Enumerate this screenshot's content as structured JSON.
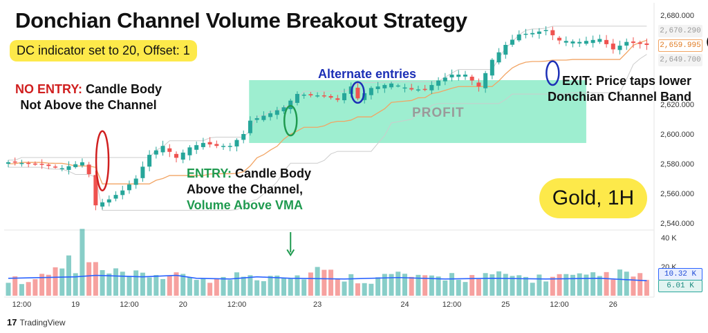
{
  "title": "Donchian Channel Volume Breakout Strategy",
  "badge": "DC indicator set to 20, Offset: 1",
  "annotations": {
    "no_entry_a": "NO ENTRY:",
    "no_entry_b": " Candle Body",
    "no_entry_c": "Not Above the Channel",
    "entry_a": "ENTRY:",
    "entry_b": " Candle Body",
    "entry_c": "Above the Channel,",
    "entry_d": "Volume Above VMA",
    "alternate": "Alternate entries",
    "profit": "PROFIT",
    "exit_a": "EXIT: Price taps lower",
    "exit_b": "Donchian Channel Band"
  },
  "asset_label": "Gold, 1H",
  "watermark": "TradingView",
  "watermark_logo": "17",
  "colors": {
    "up_candle": "#26a69a",
    "down_candle": "#ef5350",
    "basis_line": "#f2a463",
    "channel_band": "#cccccc",
    "profit_zone": "#7ee8c0",
    "vma_line": "#2962ff",
    "badge_bg": "#fde94a",
    "entry_marker": "#1f9a4f",
    "alt_marker": "#1c2fb6",
    "no_entry_marker": "#d01f1f",
    "exit_marker": "#000000"
  },
  "chart_data": {
    "type": "candlestick",
    "price_axis": {
      "ticks": [
        "2,680.000",
        "2,620.000",
        "2,600.000",
        "2,580.000",
        "2,560.000",
        "2,540.000"
      ],
      "tick_values": [
        2680,
        2620,
        2600,
        2580,
        2560,
        2540
      ],
      "tags": [
        {
          "label": "2,670.290",
          "value": 2670.29,
          "style": "gray"
        },
        {
          "label": "2,659.995",
          "value": 2659.995,
          "style": "orange"
        },
        {
          "label": "2,649.700",
          "value": 2649.7,
          "style": "gray"
        }
      ]
    },
    "volume_axis": {
      "ticks": [
        "40 K",
        "20 K"
      ],
      "tick_values": [
        40000,
        20000
      ],
      "tags": [
        {
          "label": "10.32 K",
          "value": 10320,
          "style": "blue"
        },
        {
          "label": "6.01 K",
          "value": 6010,
          "style": "teal"
        }
      ]
    },
    "time_axis": [
      "12:00",
      "19",
      "12:00",
      "20",
      "12:00",
      "23",
      "24",
      "12:00",
      "25",
      "12:00",
      "26"
    ],
    "time_axis_index": [
      2,
      10,
      18,
      26,
      34,
      46,
      59,
      66,
      74,
      82,
      90
    ],
    "bar_count": 96,
    "channel_period": 20,
    "channel_offset": 1,
    "price_anchors": [
      [
        0,
        2581
      ],
      [
        4,
        2580
      ],
      [
        8,
        2577
      ],
      [
        11,
        2581
      ],
      [
        12,
        2573
      ],
      [
        13,
        2552
      ],
      [
        15,
        2556
      ],
      [
        17,
        2562
      ],
      [
        19,
        2570
      ],
      [
        21,
        2586
      ],
      [
        23,
        2592
      ],
      [
        25,
        2584
      ],
      [
        27,
        2591
      ],
      [
        29,
        2594
      ],
      [
        31,
        2592
      ],
      [
        33,
        2592
      ],
      [
        35,
        2600
      ],
      [
        36,
        2609
      ],
      [
        39,
        2614
      ],
      [
        41,
        2618
      ],
      [
        43,
        2627
      ],
      [
        45,
        2626
      ],
      [
        47,
        2626
      ],
      [
        49,
        2623
      ],
      [
        51,
        2632
      ],
      [
        52,
        2624
      ],
      [
        54,
        2631
      ],
      [
        57,
        2634
      ],
      [
        60,
        2630
      ],
      [
        62,
        2630
      ],
      [
        64,
        2636
      ],
      [
        66,
        2640
      ],
      [
        68,
        2640
      ],
      [
        70,
        2632
      ],
      [
        72,
        2650
      ],
      [
        74,
        2660
      ],
      [
        76,
        2667
      ],
      [
        78,
        2668
      ],
      [
        80,
        2670
      ],
      [
        82,
        2663
      ],
      [
        85,
        2662
      ],
      [
        88,
        2664
      ],
      [
        90,
        2657
      ],
      [
        92,
        2662
      ],
      [
        95,
        2660
      ]
    ],
    "volume_anchors": [
      [
        0,
        11000
      ],
      [
        5,
        12000
      ],
      [
        9,
        24000
      ],
      [
        10,
        15000
      ],
      [
        11,
        42000
      ],
      [
        12,
        22000
      ],
      [
        14,
        16000
      ],
      [
        18,
        13000
      ],
      [
        22,
        15000
      ],
      [
        24,
        13000
      ],
      [
        26,
        12000
      ],
      [
        28,
        13000
      ],
      [
        32,
        11000
      ],
      [
        35,
        15000
      ],
      [
        36,
        14000
      ],
      [
        38,
        13000
      ],
      [
        40,
        18000
      ],
      [
        42,
        12000
      ],
      [
        46,
        17000
      ],
      [
        50,
        13000
      ],
      [
        54,
        11000
      ],
      [
        58,
        15000
      ],
      [
        62,
        11000
      ],
      [
        66,
        14000
      ],
      [
        70,
        12000
      ],
      [
        74,
        14000
      ],
      [
        78,
        12000
      ],
      [
        82,
        13000
      ],
      [
        86,
        12000
      ],
      [
        90,
        15000
      ],
      [
        95,
        12000
      ]
    ],
    "vma_anchors": [
      [
        0,
        12000
      ],
      [
        10,
        13000
      ],
      [
        13,
        14000
      ],
      [
        20,
        13000
      ],
      [
        25,
        14000
      ],
      [
        28,
        12000
      ],
      [
        33,
        11500
      ],
      [
        37,
        13000
      ],
      [
        42,
        12000
      ],
      [
        50,
        11500
      ],
      [
        58,
        12500
      ],
      [
        65,
        11500
      ],
      [
        72,
        12000
      ],
      [
        80,
        11500
      ],
      [
        88,
        12000
      ],
      [
        95,
        10320
      ]
    ],
    "profit_zone": {
      "start_index": 42,
      "end_index": 86,
      "top": 2640,
      "bottom": 2607
    },
    "markers": [
      {
        "name": "no-entry",
        "index": 14,
        "center": 2582,
        "half_height": 20
      },
      {
        "name": "entry",
        "index": 42,
        "center": 2609,
        "half_height": 10
      },
      {
        "name": "alt-entry-1",
        "index": 52,
        "center": 2628,
        "half_height": 7
      },
      {
        "name": "alt-entry-2",
        "index": 81,
        "center": 2641,
        "half_height": 8
      },
      {
        "name": "exit",
        "index": 105,
        "center": 2662,
        "half_height": 5
      }
    ],
    "entry_arrow_index": 42,
    "entry_arrow_volume_top": 27000
  }
}
